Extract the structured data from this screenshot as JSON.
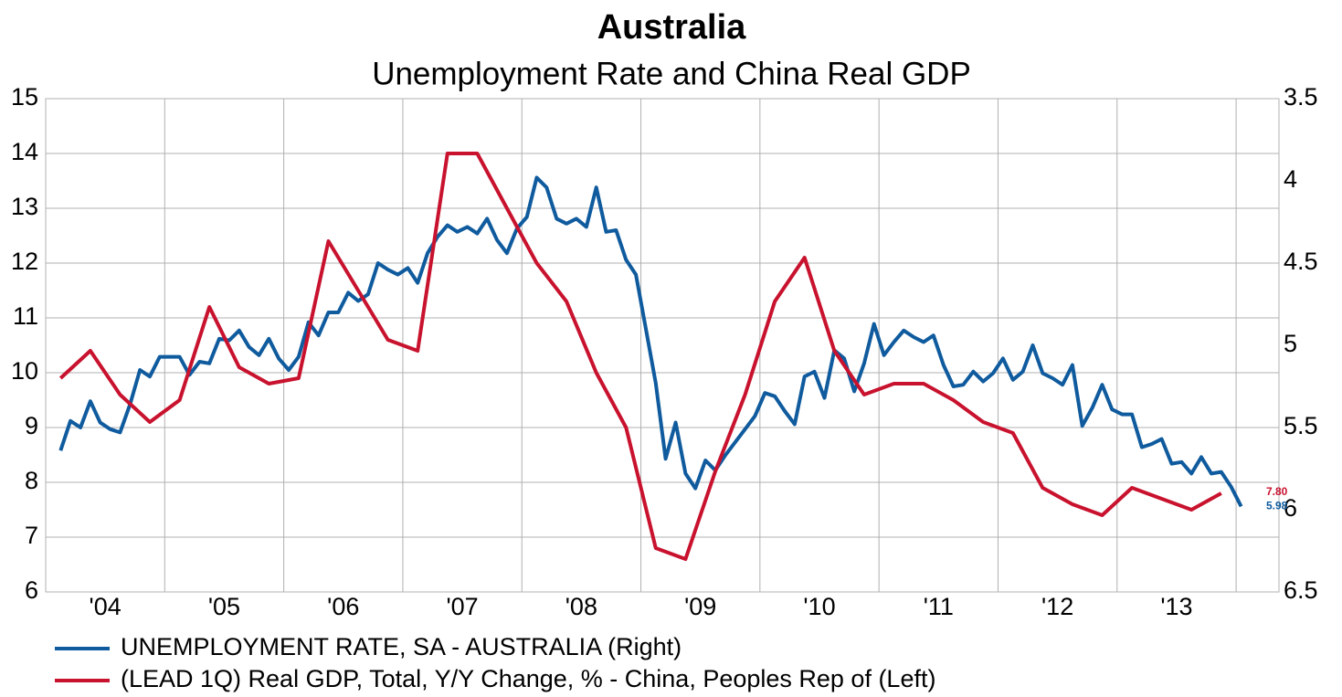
{
  "chart_data": {
    "type": "line",
    "title": "Australia",
    "subtitle": "Unemployment Rate and China Real GDP",
    "xlim": [
      2004,
      2014.36
    ],
    "xticks": [
      {
        "value": 2004.5,
        "label": "'04"
      },
      {
        "value": 2005.5,
        "label": "'05"
      },
      {
        "value": 2006.5,
        "label": "'06"
      },
      {
        "value": 2007.5,
        "label": "'07"
      },
      {
        "value": 2008.5,
        "label": "'08"
      },
      {
        "value": 2009.5,
        "label": "'09"
      },
      {
        "value": 2010.5,
        "label": "'10"
      },
      {
        "value": 2011.5,
        "label": "'11"
      },
      {
        "value": 2012.5,
        "label": "'12"
      },
      {
        "value": 2013.5,
        "label": "'13"
      }
    ],
    "xgrid": [
      2004,
      2005,
      2006,
      2007,
      2008,
      2009,
      2010,
      2011,
      2012,
      2013,
      2014
    ],
    "ylim": [
      6,
      15
    ],
    "yticks": [
      6,
      7,
      8,
      9,
      10,
      11,
      12,
      13,
      14,
      15
    ],
    "y2lim": [
      6.5,
      3.5
    ],
    "y2ticks": [
      3.5,
      4,
      4.5,
      5,
      5.5,
      6,
      6.5
    ],
    "grid": true,
    "legend": "bottom",
    "series": [
      {
        "name": "UNEMPLOYMENT RATE, SA - AUSTRALIA  (Right)",
        "color": "#0f5b9e",
        "axis": "y2",
        "x": [
          2004.125,
          2004.208,
          2004.292,
          2004.375,
          2004.458,
          2004.542,
          2004.625,
          2004.708,
          2004.792,
          2004.875,
          2004.958,
          2005.042,
          2005.125,
          2005.208,
          2005.292,
          2005.375,
          2005.458,
          2005.542,
          2005.625,
          2005.708,
          2005.792,
          2005.875,
          2005.958,
          2006.042,
          2006.125,
          2006.208,
          2006.292,
          2006.375,
          2006.458,
          2006.542,
          2006.625,
          2006.708,
          2006.792,
          2006.875,
          2006.958,
          2007.042,
          2007.125,
          2007.208,
          2007.292,
          2007.375,
          2007.458,
          2007.542,
          2007.625,
          2007.708,
          2007.792,
          2007.875,
          2007.958,
          2008.042,
          2008.125,
          2008.208,
          2008.292,
          2008.375,
          2008.458,
          2008.542,
          2008.625,
          2008.708,
          2008.792,
          2008.875,
          2008.958,
          2009.042,
          2009.125,
          2009.208,
          2009.292,
          2009.375,
          2009.458,
          2009.542,
          2009.625,
          2009.708,
          2009.792,
          2009.875,
          2009.958,
          2010.042,
          2010.125,
          2010.208,
          2010.292,
          2010.375,
          2010.458,
          2010.542,
          2010.625,
          2010.708,
          2010.792,
          2010.875,
          2010.958,
          2011.042,
          2011.125,
          2011.208,
          2011.292,
          2011.375,
          2011.458,
          2011.542,
          2011.625,
          2011.708,
          2011.792,
          2011.875,
          2011.958,
          2012.042,
          2012.125,
          2012.208,
          2012.292,
          2012.375,
          2012.458,
          2012.542,
          2012.625,
          2012.708,
          2012.792,
          2012.875,
          2012.958,
          2013.042,
          2013.125,
          2013.208,
          2013.292,
          2013.375,
          2013.458,
          2013.542,
          2013.625,
          2013.708,
          2013.792,
          2013.875,
          2013.958,
          2014.042
        ],
        "values": [
          5.64,
          5.46,
          5.5,
          5.34,
          5.47,
          5.51,
          5.53,
          5.36,
          5.15,
          5.19,
          5.07,
          5.07,
          5.07,
          5.18,
          5.1,
          5.11,
          4.96,
          4.97,
          4.91,
          5.01,
          5.06,
          4.96,
          5.08,
          5.15,
          5.07,
          4.86,
          4.94,
          4.8,
          4.8,
          4.68,
          4.73,
          4.69,
          4.5,
          4.54,
          4.57,
          4.53,
          4.62,
          4.44,
          4.34,
          4.27,
          4.31,
          4.28,
          4.32,
          4.23,
          4.36,
          4.44,
          4.29,
          4.22,
          3.98,
          4.04,
          4.23,
          4.26,
          4.23,
          4.28,
          4.04,
          4.31,
          4.3,
          4.48,
          4.57,
          4.9,
          5.23,
          5.69,
          5.47,
          5.78,
          5.87,
          5.7,
          5.76,
          5.67,
          5.59,
          5.51,
          5.43,
          5.29,
          5.31,
          5.4,
          5.48,
          5.19,
          5.16,
          5.32,
          5.03,
          5.08,
          5.28,
          5.11,
          4.87,
          5.06,
          4.98,
          4.91,
          4.95,
          4.98,
          4.94,
          5.12,
          5.25,
          5.24,
          5.16,
          5.22,
          5.17,
          5.08,
          5.21,
          5.16,
          5.0,
          5.17,
          5.2,
          5.24,
          5.12,
          5.49,
          5.38,
          5.24,
          5.39,
          5.42,
          5.42,
          5.62,
          5.6,
          5.57,
          5.72,
          5.71,
          5.78,
          5.68,
          5.78,
          5.77,
          5.86,
          5.98
        ]
      },
      {
        "name": "(LEAD 1Q) Real GDP, Total, Y/Y Change, % - China, Peoples Rep of  (Left)",
        "color": "#c8122e",
        "axis": "y",
        "x": [
          2004.125,
          2004.375,
          2004.625,
          2004.875,
          2005.125,
          2005.375,
          2005.625,
          2005.875,
          2006.125,
          2006.375,
          2006.625,
          2006.875,
          2007.125,
          2007.375,
          2007.625,
          2007.875,
          2008.125,
          2008.375,
          2008.625,
          2008.875,
          2009.125,
          2009.375,
          2009.625,
          2009.875,
          2010.125,
          2010.375,
          2010.625,
          2010.875,
          2011.125,
          2011.375,
          2011.625,
          2011.875,
          2012.125,
          2012.375,
          2012.625,
          2012.875,
          2013.125,
          2013.375,
          2013.625,
          2013.875
        ],
        "values": [
          9.9,
          10.4,
          9.6,
          9.1,
          9.5,
          11.2,
          10.1,
          9.8,
          9.9,
          12.4,
          11.5,
          10.6,
          10.4,
          14.0,
          14.0,
          13.0,
          12.0,
          11.3,
          10.0,
          9.0,
          6.8,
          6.6,
          8.2,
          9.6,
          11.3,
          12.1,
          10.4,
          9.6,
          9.8,
          9.8,
          9.5,
          9.1,
          8.9,
          7.9,
          7.6,
          7.4,
          7.9,
          7.7,
          7.5,
          7.8
        ],
        "value_labels": [
          null,
          null,
          null,
          null,
          null,
          null,
          null,
          null,
          null,
          null,
          null,
          null,
          null,
          null,
          null,
          null,
          null,
          null,
          null,
          null,
          null,
          null,
          null,
          null,
          null,
          null,
          null,
          null,
          null,
          null,
          null,
          null,
          null,
          null,
          null,
          null,
          null,
          null,
          null,
          "7.80"
        ]
      }
    ]
  }
}
